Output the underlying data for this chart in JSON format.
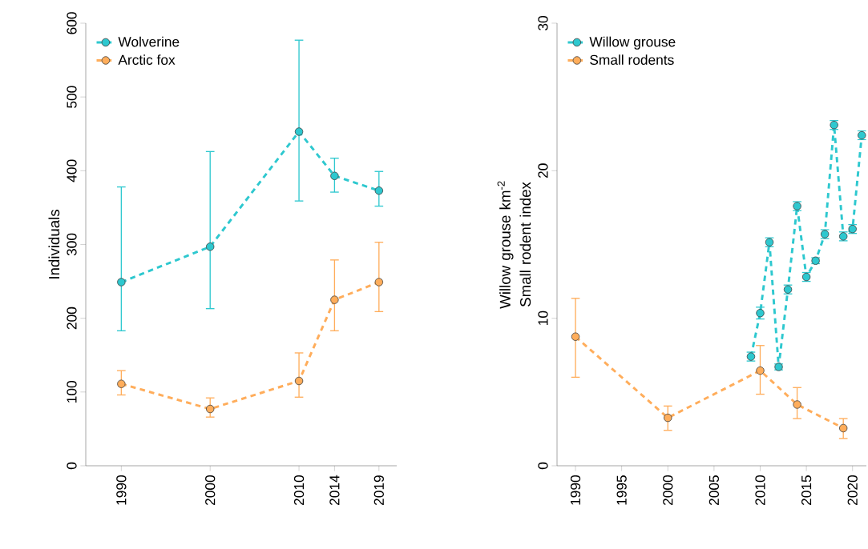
{
  "chart_data": [
    {
      "type": "line",
      "ylabel": "Individuals",
      "xlim": [
        1986,
        2021
      ],
      "ylim": [
        0,
        600
      ],
      "xticks": [
        1990,
        2000,
        2010,
        2014,
        2019
      ],
      "yticks": [
        0,
        100,
        200,
        300,
        400,
        500,
        600
      ],
      "legend": "top left",
      "marker": "circle",
      "line_style": "dashed",
      "x": [
        1990,
        2000,
        2010,
        2014,
        2019
      ],
      "series": [
        {
          "name": "Wolverine",
          "color": "#2ec8cf",
          "values": [
            249,
            297,
            453,
            393,
            373
          ],
          "errors": [
            [
              183,
              378
            ],
            [
              213,
              426
            ],
            [
              359,
              577
            ],
            [
              371,
              417
            ],
            [
              352,
              399
            ]
          ]
        },
        {
          "name": "Arctic fox",
          "color": "#ffad5b",
          "values": [
            111,
            77,
            115,
            225,
            249
          ],
          "errors": [
            [
              96,
              129
            ],
            [
              66,
              92
            ],
            [
              93,
              153
            ],
            [
              183,
              279
            ],
            [
              209,
              303
            ]
          ]
        }
      ]
    },
    {
      "type": "line",
      "ylabel": "Willow grouse  km$^{-2}$ Small rodent index",
      "xlim": [
        1988,
        2021.5
      ],
      "ylim": [
        0,
        30
      ],
      "xticks": [
        1990,
        1995,
        2000,
        2005,
        2010,
        2015,
        2020
      ],
      "yticks": [
        0,
        10,
        20,
        30
      ],
      "legend": "top left",
      "marker": "circle",
      "line_style": "dashed",
      "series": [
        {
          "name": "Willow grouse",
          "color": "#2ec8cf",
          "x": [
            2009,
            2010,
            2011,
            2012,
            2013,
            2014,
            2015,
            2016,
            2017,
            2018,
            2019,
            2020,
            2021
          ],
          "values": [
            7.4,
            10.35,
            15.15,
            6.7,
            11.95,
            17.6,
            12.8,
            13.9,
            15.7,
            23.1,
            15.55,
            16.05,
            22.4
          ],
          "errors": [
            0.3,
            0.4,
            0.3,
            0.2,
            0.3,
            0.3,
            0.3,
            0.2,
            0.3,
            0.3,
            0.3,
            0.3,
            0.3
          ]
        },
        {
          "name": "Small rodents",
          "color": "#ffad5b",
          "x": [
            1990,
            2000,
            2010,
            2014,
            2019
          ],
          "values": [
            8.75,
            3.25,
            6.45,
            4.15,
            2.55
          ],
          "errors": [
            [
              6.0,
              11.35
            ],
            [
              2.4,
              4.05
            ],
            [
              4.85,
              8.15
            ],
            [
              3.2,
              5.3
            ],
            [
              1.85,
              3.2
            ]
          ]
        }
      ]
    }
  ]
}
